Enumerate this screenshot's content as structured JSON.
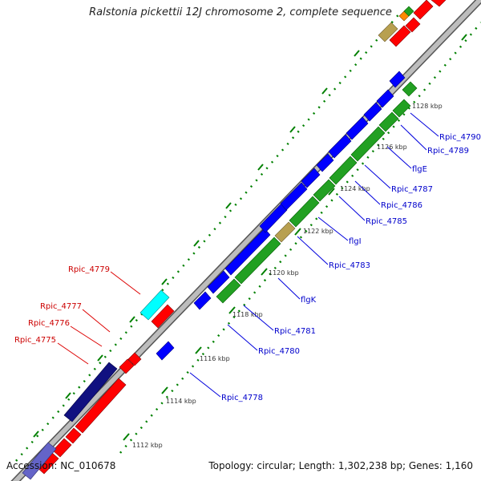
{
  "title": "Ralstonia pickettii 12J chromosome 2, complete sequence",
  "footer": {
    "accession": "Accession: NC_010678",
    "summary": "Topology: circular; Length: 1,302,238 bp; Genes: 1,160"
  },
  "colors": {
    "background": "#ffffff",
    "backbone": "#b4b4b4",
    "forward_gene": "#ff0000",
    "reverse_gene": "#0000ff",
    "rna_operon": "#00a000",
    "misc_feature": "#00ffff",
    "repeat": "#6464c8",
    "forward_label": "#c80000",
    "reverse_label": "#0000c8",
    "tick": "#008000"
  },
  "scale_labels": [
    "1112 kbp",
    "1114 kbp",
    "1116 kbp",
    "1118 kbp",
    "1120 kbp",
    "1122 kbp",
    "1124 kbp",
    "1126 kbp",
    "1128 kbp"
  ],
  "forward_labels": [
    "Rpic_4779",
    "Rpic_4777",
    "Rpic_4776",
    "Rpic_4775"
  ],
  "reverse_labels": [
    "Rpic_4790",
    "Rpic_4789",
    "flgE",
    "Rpic_4787",
    "Rpic_4786",
    "Rpic_4785",
    "flgI",
    "Rpic_4783",
    "flgK",
    "Rpic_4781",
    "Rpic_4780",
    "Rpic_4778"
  ]
}
